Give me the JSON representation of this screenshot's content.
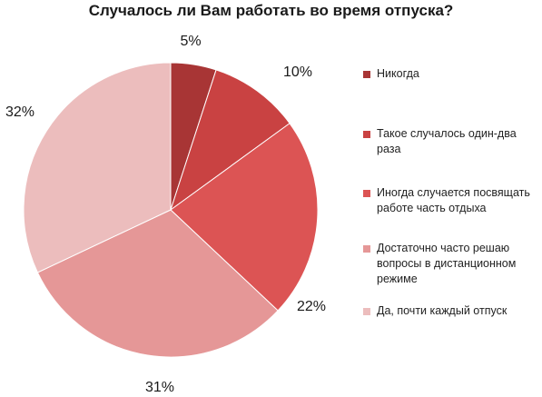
{
  "chart_data": {
    "type": "pie",
    "title": "Случалось ли Вам работать во время отпуска?",
    "categories": [
      "Никогда",
      "Такое случалось один-два раза",
      "Иногда случается посвящать работе часть отдыха",
      "Достаточно часто решаю вопросы в дистанционном режиме",
      "Да, почти каждый отпуск"
    ],
    "values": [
      5,
      10,
      22,
      31,
      32
    ],
    "value_labels": [
      "5%",
      "10%",
      "22%",
      "31%",
      "32%"
    ],
    "colors": [
      "#a83535",
      "#c94242",
      "#dc5454",
      "#e59797",
      "#ecbdbd"
    ],
    "legend_position": "right",
    "start_angle": "top, clockwise"
  }
}
